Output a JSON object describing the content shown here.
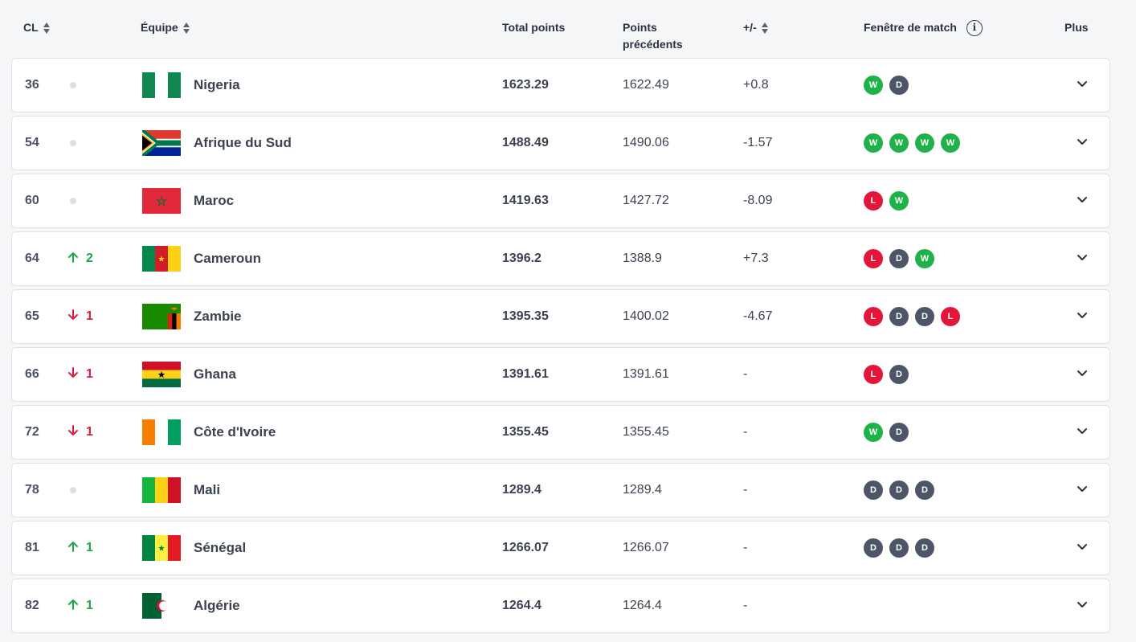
{
  "header": {
    "rank": "CL",
    "team": "Équipe",
    "total": "Total points",
    "prev_line1": "Points",
    "prev_line2": "précédents",
    "diff": "+/-",
    "window": "Fenêtre de match",
    "more": "Plus"
  },
  "colors": {
    "win": "#1fb24a",
    "loss": "#e3163a",
    "draw": "#4d5568",
    "up": "#1ea54a",
    "down": "#d81e3a"
  },
  "rows": [
    {
      "rank": "36",
      "move": "",
      "dir": "none",
      "team": "Nigeria",
      "total": "1623.29",
      "prev": "1622.49",
      "diff": "+0.8",
      "results": [
        "W",
        "D"
      ]
    },
    {
      "rank": "54",
      "move": "",
      "dir": "none",
      "team": "Afrique du Sud",
      "total": "1488.49",
      "prev": "1490.06",
      "diff": "-1.57",
      "results": [
        "W",
        "W",
        "W",
        "W"
      ]
    },
    {
      "rank": "60",
      "move": "",
      "dir": "none",
      "team": "Maroc",
      "total": "1419.63",
      "prev": "1427.72",
      "diff": "-8.09",
      "results": [
        "L",
        "W"
      ]
    },
    {
      "rank": "64",
      "move": "2",
      "dir": "up",
      "team": "Cameroun",
      "total": "1396.2",
      "prev": "1388.9",
      "diff": "+7.3",
      "results": [
        "L",
        "D",
        "W"
      ]
    },
    {
      "rank": "65",
      "move": "1",
      "dir": "down",
      "team": "Zambie",
      "total": "1395.35",
      "prev": "1400.02",
      "diff": "-4.67",
      "results": [
        "L",
        "D",
        "D",
        "L"
      ]
    },
    {
      "rank": "66",
      "move": "1",
      "dir": "down",
      "team": "Ghana",
      "total": "1391.61",
      "prev": "1391.61",
      "diff": "-",
      "results": [
        "L",
        "D"
      ]
    },
    {
      "rank": "72",
      "move": "1",
      "dir": "down",
      "team": "Côte d'Ivoire",
      "total": "1355.45",
      "prev": "1355.45",
      "diff": "-",
      "results": [
        "W",
        "D"
      ]
    },
    {
      "rank": "78",
      "move": "",
      "dir": "none",
      "team": "Mali",
      "total": "1289.4",
      "prev": "1289.4",
      "diff": "-",
      "results": [
        "D",
        "D",
        "D"
      ]
    },
    {
      "rank": "81",
      "move": "1",
      "dir": "up",
      "team": "Sénégal",
      "total": "1266.07",
      "prev": "1266.07",
      "diff": "-",
      "results": [
        "D",
        "D",
        "D"
      ]
    },
    {
      "rank": "82",
      "move": "1",
      "dir": "up",
      "team": "Algérie",
      "total": "1264.4",
      "prev": "1264.4",
      "diff": "-",
      "results": []
    }
  ]
}
